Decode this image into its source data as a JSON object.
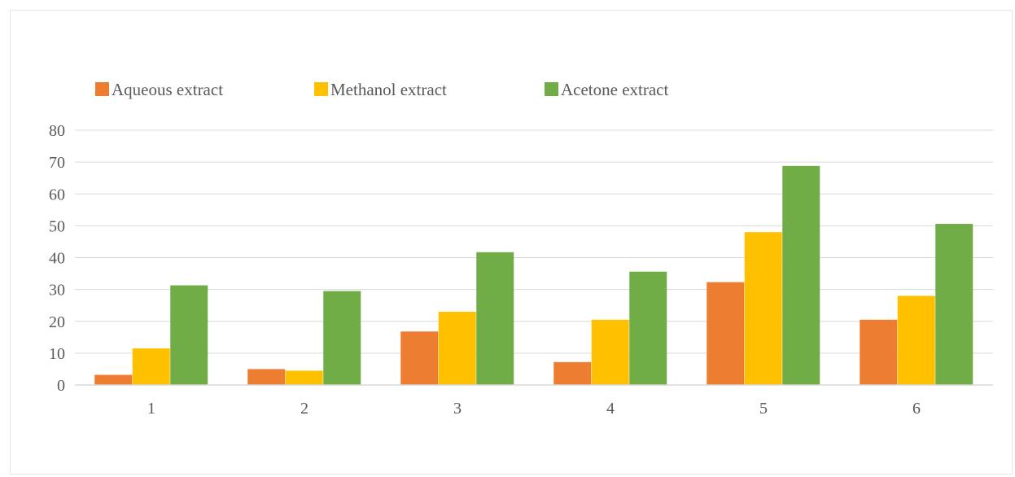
{
  "chart_data": {
    "type": "bar",
    "categories": [
      "1",
      "2",
      "3",
      "4",
      "5",
      "6"
    ],
    "series": [
      {
        "name": "Aqueous extract",
        "color": "#ED7D31",
        "values": [
          3.2,
          5.0,
          16.8,
          7.2,
          32.3,
          20.5
        ]
      },
      {
        "name": "Methanol extract",
        "color": "#FFC000",
        "values": [
          11.5,
          4.5,
          23.0,
          20.5,
          48.0,
          28.0
        ]
      },
      {
        "name": "Acetone extract",
        "color": "#70AD47",
        "values": [
          31.3,
          29.5,
          41.7,
          35.6,
          68.8,
          50.6
        ]
      }
    ],
    "yticks": [
      "0",
      "10",
      "20",
      "30",
      "40",
      "50",
      "60",
      "70",
      "80"
    ],
    "ylim": [
      0,
      80
    ],
    "grid": true,
    "legend_position": "top-left",
    "title": "",
    "xlabel": "",
    "ylabel": ""
  }
}
